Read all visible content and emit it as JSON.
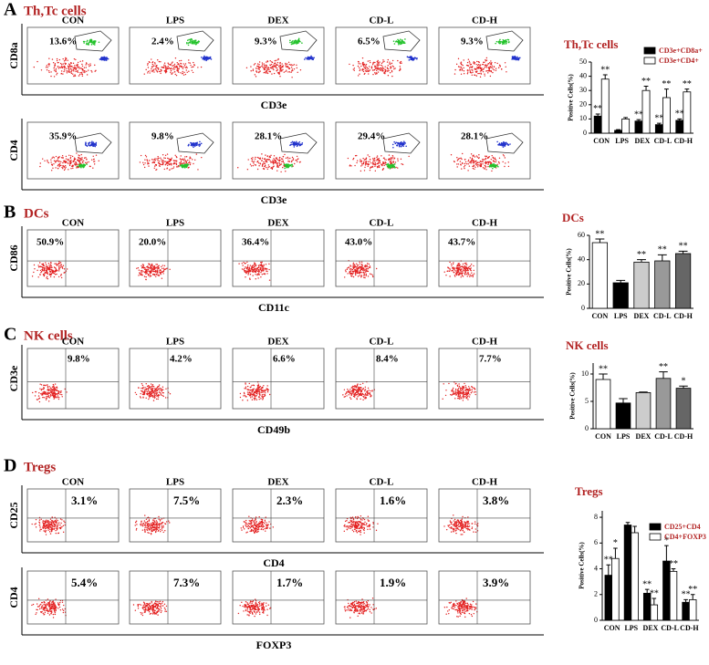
{
  "panels": [
    {
      "letter": "A",
      "title": "Th,Tc cells",
      "groups": [
        "CON",
        "LPS",
        "DEX",
        "CD-L",
        "CD-H"
      ],
      "rows": [
        {
          "y_label": "CD8a",
          "x_label": "CD3e",
          "percents": [
            "13.6%",
            "2.4%",
            "9.3%",
            "6.5%",
            "9.3%"
          ]
        },
        {
          "y_label": "CD4",
          "x_label": "CD3e",
          "percents": [
            "35.9%",
            "9.8%",
            "28.1%",
            "29.4%",
            "28.1%"
          ]
        }
      ]
    },
    {
      "letter": "B",
      "title": "DCs",
      "groups": [
        "CON",
        "LPS",
        "DEX",
        "CD-L",
        "CD-H"
      ],
      "rows": [
        {
          "y_label": "CD86",
          "x_label": "CD11c",
          "percents": [
            "50.9%",
            "20.0%",
            "36.4%",
            "43.0%",
            "43.7%"
          ]
        }
      ]
    },
    {
      "letter": "C",
      "title": "NK cells",
      "groups": [
        "CON",
        "LPS",
        "DEX",
        "CD-L",
        "CD-H"
      ],
      "rows": [
        {
          "y_label": "CD3e",
          "x_label": "CD49b",
          "percents": [
            "9.8%",
            "4.2%",
            "6.6%",
            "8.4%",
            "7.7%"
          ]
        }
      ]
    },
    {
      "letter": "D",
      "title": "Tregs",
      "groups": [
        "CON",
        "LPS",
        "DEX",
        "CD-L",
        "CD-H"
      ],
      "rows": [
        {
          "y_label": "CD25",
          "x_label": "CD4",
          "percents": [
            "3.1%",
            "7.5%",
            "2.3%",
            "1.6%",
            "3.8%"
          ]
        },
        {
          "y_label": "CD4",
          "x_label": "FOXP3",
          "percents": [
            "5.4%",
            "7.3%",
            "1.7%",
            "1.9%",
            "3.9%"
          ]
        }
      ]
    }
  ],
  "chart_data": [
    {
      "type": "bar",
      "title": "Th,Tc cells",
      "y_label": "Positive Cells(%)",
      "categories": [
        "CON",
        "LPS",
        "DEX",
        "CD-L",
        "CD-H"
      ],
      "ylim": [
        0,
        50
      ],
      "yticks": [
        0,
        10,
        20,
        30,
        40,
        50
      ],
      "series": [
        {
          "name": "CD3e+CD8a+",
          "color": "#000000",
          "values": [
            12,
            2,
            8.5,
            6,
            9
          ],
          "errors": [
            1.5,
            0.5,
            1,
            1,
            1
          ],
          "labels": [
            "**",
            null,
            "**",
            "**",
            "**"
          ]
        },
        {
          "name": "CD3e+CD4+",
          "color": "#ffffff",
          "values": [
            38,
            10,
            30,
            25,
            29
          ],
          "errors": [
            3,
            1,
            3,
            6,
            2
          ],
          "labels": [
            "**",
            null,
            "**",
            "**",
            "**"
          ]
        }
      ]
    },
    {
      "type": "bar",
      "title": "DCs",
      "y_label": "Positive Cells(%)",
      "categories": [
        "CON",
        "LPS",
        "DEX",
        "CD-L",
        "CD-H"
      ],
      "ylim": [
        0,
        60
      ],
      "yticks": [
        0,
        20,
        40,
        60
      ],
      "values": [
        54,
        21,
        38,
        39,
        45
      ],
      "errors": [
        3,
        2,
        2,
        5,
        2
      ],
      "colors": [
        "#ffffff",
        "#000000",
        "#cccccc",
        "#999999",
        "#666666"
      ],
      "labels": [
        "**",
        null,
        "**",
        "**",
        "**"
      ]
    },
    {
      "type": "bar",
      "title": "NK cells",
      "y_label": "Positive Cells(%)",
      "categories": [
        "CON",
        "LPS",
        "DEX",
        "CD-L",
        "CD-H"
      ],
      "ylim": [
        0,
        12
      ],
      "yticks": [
        0,
        5,
        10
      ],
      "values": [
        9,
        4.7,
        6.6,
        9.2,
        7.4
      ],
      "errors": [
        1,
        0.8,
        0.1,
        1.2,
        0.4
      ],
      "colors": [
        "#ffffff",
        "#000000",
        "#cccccc",
        "#999999",
        "#666666"
      ],
      "labels": [
        "**",
        null,
        null,
        "**",
        "*"
      ]
    },
    {
      "type": "bar",
      "title": "Tregs",
      "y_label": "Positive Cells(%)",
      "categories": [
        "CON",
        "LPS",
        "DEX",
        "CD-L",
        "CD-H"
      ],
      "ylim": [
        0,
        8.5
      ],
      "yticks": [
        0,
        2,
        4,
        6,
        8
      ],
      "series": [
        {
          "name": "CD25+CD4",
          "color": "#000000",
          "values": [
            3.5,
            7.4,
            2.1,
            4.6,
            1.4
          ],
          "errors": [
            0.8,
            0.2,
            0.3,
            1.2,
            0.2
          ],
          "labels": [
            "**",
            null,
            "**",
            "*",
            "**"
          ]
        },
        {
          "name": "CD4+FOXP3",
          "color": "#ffffff",
          "values": [
            4.8,
            6.8,
            1.2,
            3.8,
            1.6
          ],
          "errors": [
            0.8,
            0.5,
            0.5,
            0.2,
            0.4
          ],
          "labels": [
            "*",
            null,
            "**",
            "**",
            "**"
          ]
        }
      ]
    }
  ]
}
